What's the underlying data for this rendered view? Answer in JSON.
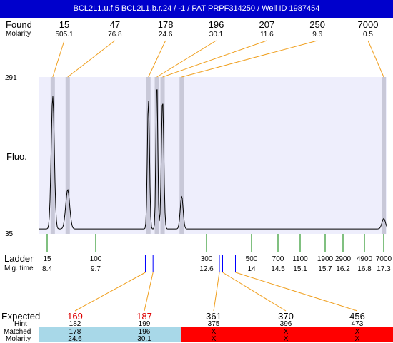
{
  "title": "BCL2L1.u.f.5  BCL2L1.b.r.24 / -1 / PAT PRPF314250 / Well ID 1987454",
  "labels": {
    "found": "Found",
    "molarity": "Molarity",
    "fluo": "Fluo.",
    "ladder": "Ladder",
    "mig_time": "Mig. time",
    "expected": "Expected",
    "hint": "Hint",
    "matched": "Matched",
    "molarity_bottom": "Molarity"
  },
  "y_axis": {
    "max_label": "291",
    "min_label": "35",
    "max": 291,
    "min": 35
  },
  "found_peaks": [
    {
      "size": "15",
      "molarity": "505.1",
      "mig": 8.55
    },
    {
      "size": "47",
      "molarity": "76.8",
      "mig": 8.95
    },
    {
      "size": "178",
      "molarity": "24.6",
      "mig": 11.08
    },
    {
      "size": "196",
      "molarity": "30.1",
      "mig": 11.3
    },
    {
      "size": "207",
      "molarity": "11.6",
      "mig": 11.45
    },
    {
      "size": "250",
      "molarity": "9.6",
      "mig": 11.95
    },
    {
      "size": "7000",
      "molarity": "0.5",
      "mig": 17.3
    }
  ],
  "ladder": [
    {
      "size": "15",
      "time": "8.4",
      "t": 8.4
    },
    {
      "size": "100",
      "time": "9.7",
      "t": 9.7
    },
    {
      "size": "300",
      "time": "12.6",
      "t": 12.6
    },
    {
      "size": "500",
      "time": "14",
      "t": 14
    },
    {
      "size": "700",
      "time": "14.5",
      "t": 14.5
    },
    {
      "size": "1100",
      "time": "15.1",
      "t": 15.1
    },
    {
      "size": "1900",
      "time": "15.7",
      "t": 15.7
    },
    {
      "size": "2900",
      "time": "16.2",
      "t": 16.2
    },
    {
      "size": "4900",
      "time": "16.8",
      "t": 16.8
    },
    {
      "size": "7000",
      "time": "17.3",
      "t": 17.3
    }
  ],
  "expected": [
    {
      "size": "169",
      "hint": "182",
      "matched": "178",
      "molarity": "24.6",
      "status": "matched",
      "mig": 11.08,
      "mark": 11.0
    },
    {
      "size": "187",
      "hint": "199",
      "matched": "196",
      "molarity": "30.1",
      "status": "matched",
      "mig": 11.3,
      "mark": 11.2
    },
    {
      "size": "361",
      "hint": "375",
      "matched": "X",
      "molarity": "X",
      "status": "missing",
      "mig": 13.0,
      "mark": 13.0
    },
    {
      "size": "370",
      "hint": "396",
      "matched": "X",
      "molarity": "X",
      "status": "missing",
      "mig": 13.1,
      "mark": 13.1
    },
    {
      "size": "456",
      "hint": "473",
      "matched": "X",
      "molarity": "X",
      "status": "missing",
      "mig": 13.5,
      "mark": 13.5
    }
  ],
  "colors": {
    "title_bg": "#0000cc",
    "plot_bg": "#eeeefc",
    "peak_band": "#c8c8d8",
    "trace": "#000000",
    "found_link": "#f0a020",
    "ladder_tick": "#008000",
    "expected_mark": "#0000ff",
    "expected_red": "#dd0000",
    "matched_bg": "#a8d8e8",
    "missing_bg": "#ff0000"
  }
}
